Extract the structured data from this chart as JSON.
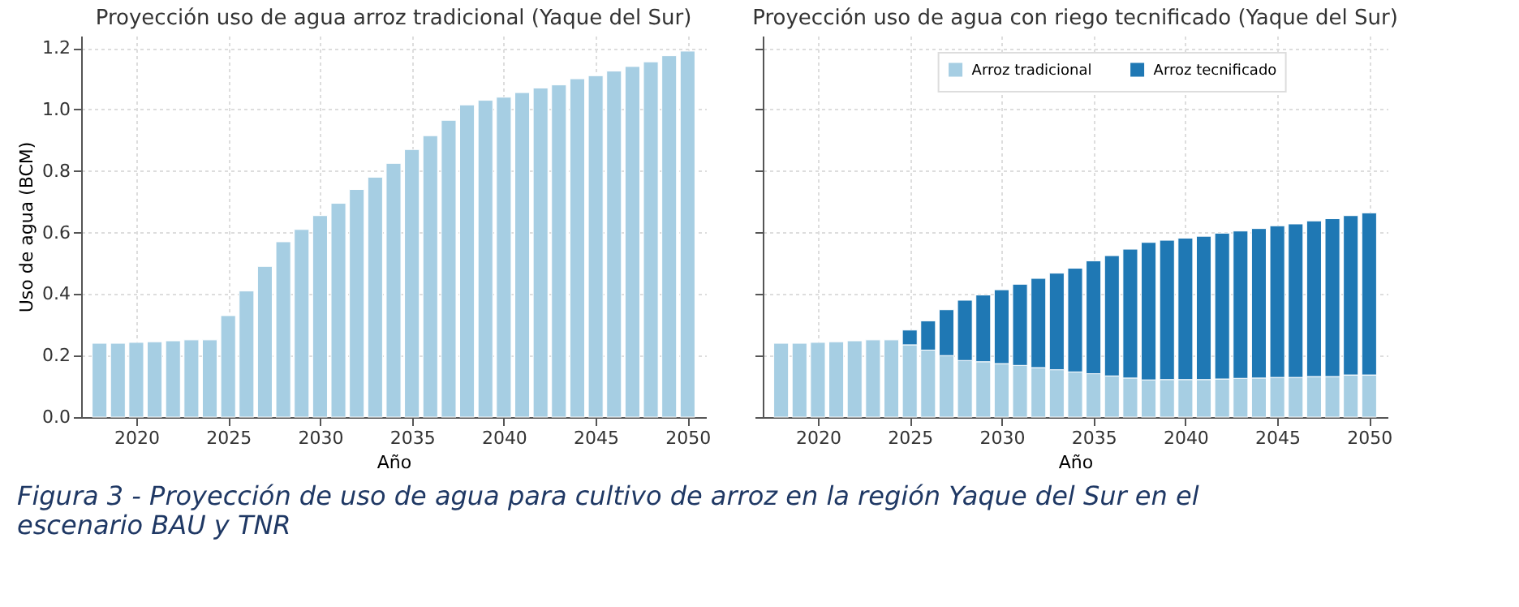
{
  "chart_data": [
    {
      "type": "bar",
      "title": "Proyección uso de agua arroz tradicional (Yaque del Sur)",
      "xlabel": "Año",
      "ylabel": "Uso de agua (BCM)",
      "x": [
        2018,
        2019,
        2020,
        2021,
        2022,
        2023,
        2024,
        2025,
        2026,
        2027,
        2028,
        2029,
        2030,
        2031,
        2032,
        2033,
        2034,
        2035,
        2036,
        2037,
        2038,
        2039,
        2040,
        2041,
        2042,
        2043,
        2044,
        2045,
        2046,
        2047,
        2048,
        2049,
        2050
      ],
      "series": [
        {
          "color": "#a6cee3",
          "values": [
            0.24,
            0.24,
            0.243,
            0.245,
            0.248,
            0.251,
            0.251,
            0.33,
            0.41,
            0.49,
            0.57,
            0.61,
            0.655,
            0.695,
            0.74,
            0.78,
            0.825,
            0.87,
            0.915,
            0.965,
            1.015,
            1.03,
            1.04,
            1.055,
            1.07,
            1.08,
            1.1,
            1.11,
            1.125,
            1.14,
            1.155,
            1.175,
            1.19
          ]
        }
      ],
      "xlim": [
        2017,
        2051
      ],
      "xticks": [
        2020,
        2025,
        2030,
        2035,
        2040,
        2045,
        2050
      ],
      "ylim": [
        0,
        1.24
      ],
      "yticks": [
        {
          "value": 0,
          "label": "0.0"
        },
        0.2,
        0.4,
        0.6,
        0.8,
        {
          "value": 1,
          "label": "1.0"
        },
        1.2
      ],
      "grid": true,
      "annotations": [
        "Figura 3 - Proyección de uso de agua para cultivo de arroz en la región Yaque del Sur en el escenario BAU y TNR"
      ]
    },
    {
      "type": "bar",
      "title": "Proyección uso de agua con riego tecnificado (Yaque del Sur)",
      "xlabel": "Año",
      "stacked": true,
      "x": [
        2018,
        2019,
        2020,
        2021,
        2022,
        2023,
        2024,
        2025,
        2026,
        2027,
        2028,
        2029,
        2030,
        2031,
        2032,
        2033,
        2034,
        2035,
        2036,
        2037,
        2038,
        2039,
        2040,
        2041,
        2042,
        2043,
        2044,
        2045,
        2046,
        2047,
        2048,
        2049,
        2050
      ],
      "series": [
        {
          "name": "Arroz tradicional",
          "color": "#a6cee3",
          "values": [
            0.24,
            0.24,
            0.243,
            0.245,
            0.248,
            0.251,
            0.251,
            0.235,
            0.218,
            0.2,
            0.184,
            0.18,
            0.174,
            0.168,
            0.161,
            0.154,
            0.147,
            0.141,
            0.134,
            0.127,
            0.121,
            0.122,
            0.122,
            0.122,
            0.124,
            0.126,
            0.127,
            0.129,
            0.129,
            0.132,
            0.132,
            0.137,
            0.137
          ]
        },
        {
          "name": "Arroz tecnificado",
          "color": "#1f78b4",
          "values": [
            null,
            null,
            null,
            null,
            null,
            null,
            null,
            0.048,
            0.095,
            0.149,
            0.196,
            0.217,
            0.24,
            0.264,
            0.29,
            0.314,
            0.337,
            0.367,
            0.391,
            0.419,
            0.447,
            0.453,
            0.46,
            0.466,
            0.474,
            0.479,
            0.486,
            0.493,
            0.499,
            0.506,
            0.513,
            0.518,
            0.527
          ]
        }
      ],
      "xlim": [
        2017,
        2051
      ],
      "xticks": [
        2020,
        2025,
        2030,
        2035,
        2040,
        2045,
        2050
      ],
      "ylim": [
        0,
        1.24
      ],
      "yticks": [
        0,
        0.2,
        0.4,
        0.6,
        0.8,
        1,
        1.2
      ],
      "grid": true,
      "legend": "top",
      "tick_labels": "x"
    }
  ]
}
